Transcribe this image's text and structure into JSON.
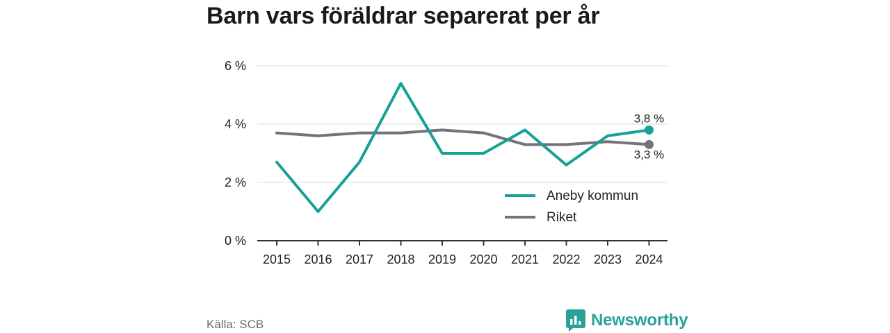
{
  "title": "Barn vars föräldrar separerat per år",
  "source": "Källa: SCB",
  "brand": {
    "name": "Newsworthy"
  },
  "colors": {
    "accent": "#16a196",
    "national": "#74737b",
    "grid": "#d9d9d9",
    "axis": "#333333"
  },
  "chart_data": {
    "type": "line",
    "title": "Barn vars föräldrar separerat per år",
    "x": [
      "2015",
      "2016",
      "2017",
      "2018",
      "2019",
      "2020",
      "2021",
      "2022",
      "2023",
      "2024"
    ],
    "y_ticks": [
      "0 %",
      "2 %",
      "4 %",
      "6 %"
    ],
    "ylim": [
      0,
      6
    ],
    "grid": true,
    "legend": {
      "position": "bottom-right",
      "entries": [
        "Aneby kommun",
        "Riket"
      ]
    },
    "series": [
      {
        "name": "Aneby kommun",
        "color": "#16a196",
        "values": [
          2.7,
          1.0,
          2.7,
          5.4,
          3.0,
          3.0,
          3.8,
          2.6,
          3.6,
          3.8
        ],
        "end_label": "3,8 %"
      },
      {
        "name": "Riket",
        "color": "#74737b",
        "values": [
          3.7,
          3.6,
          3.7,
          3.7,
          3.8,
          3.7,
          3.3,
          3.3,
          3.4,
          3.3
        ],
        "end_label": "3,3 %"
      }
    ]
  }
}
